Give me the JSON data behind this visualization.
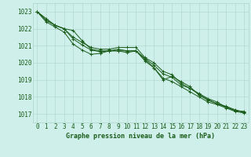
{
  "title": "Graphe pression niveau de la mer (hPa)",
  "background_color": "#cff0ea",
  "grid_color": "#aad4cc",
  "line_color": "#1a5c1a",
  "xlim": [
    -0.5,
    23.5
  ],
  "ylim": [
    1016.5,
    1023.5
  ],
  "yticks": [
    1017,
    1018,
    1019,
    1020,
    1021,
    1022,
    1023
  ],
  "xticks": [
    0,
    1,
    2,
    3,
    4,
    5,
    6,
    7,
    8,
    9,
    10,
    11,
    12,
    13,
    14,
    15,
    16,
    17,
    18,
    19,
    20,
    21,
    22,
    23
  ],
  "series": [
    [
      1023.0,
      1022.5,
      1022.2,
      1022.0,
      1021.9,
      1021.3,
      1020.8,
      1020.7,
      1020.7,
      1020.8,
      1020.7,
      1020.7,
      1020.2,
      1019.7,
      1019.0,
      1019.2,
      1018.9,
      1018.6,
      1018.1,
      1017.8,
      1017.6,
      1017.4,
      1017.2,
      1017.1
    ],
    [
      1023.0,
      1022.6,
      1022.2,
      1022.0,
      1021.5,
      1021.2,
      1020.9,
      1020.8,
      1020.8,
      1020.9,
      1020.9,
      1020.9,
      1020.3,
      1020.0,
      1019.5,
      1019.3,
      1018.8,
      1018.5,
      1018.2,
      1017.9,
      1017.7,
      1017.4,
      1017.2,
      1017.15
    ],
    [
      1023.0,
      1022.5,
      1022.2,
      1022.0,
      1021.4,
      1021.05,
      1020.75,
      1020.65,
      1020.7,
      1020.7,
      1020.7,
      1020.7,
      1020.25,
      1019.85,
      1019.35,
      1019.15,
      1018.7,
      1018.5,
      1018.15,
      1017.85,
      1017.6,
      1017.45,
      1017.25,
      1017.1
    ],
    [
      1023.0,
      1022.4,
      1022.1,
      1021.8,
      1021.1,
      1020.75,
      1020.5,
      1020.55,
      1020.7,
      1020.7,
      1020.6,
      1020.7,
      1020.1,
      1019.7,
      1019.1,
      1018.9,
      1018.6,
      1018.3,
      1018.0,
      1017.7,
      1017.55,
      1017.35,
      1017.15,
      1017.05
    ]
  ],
  "tick_fontsize": 5.5,
  "xlabel_fontsize": 6.0,
  "tick_color": "#1a5c1a",
  "xlabel_color": "#1a5c1a"
}
